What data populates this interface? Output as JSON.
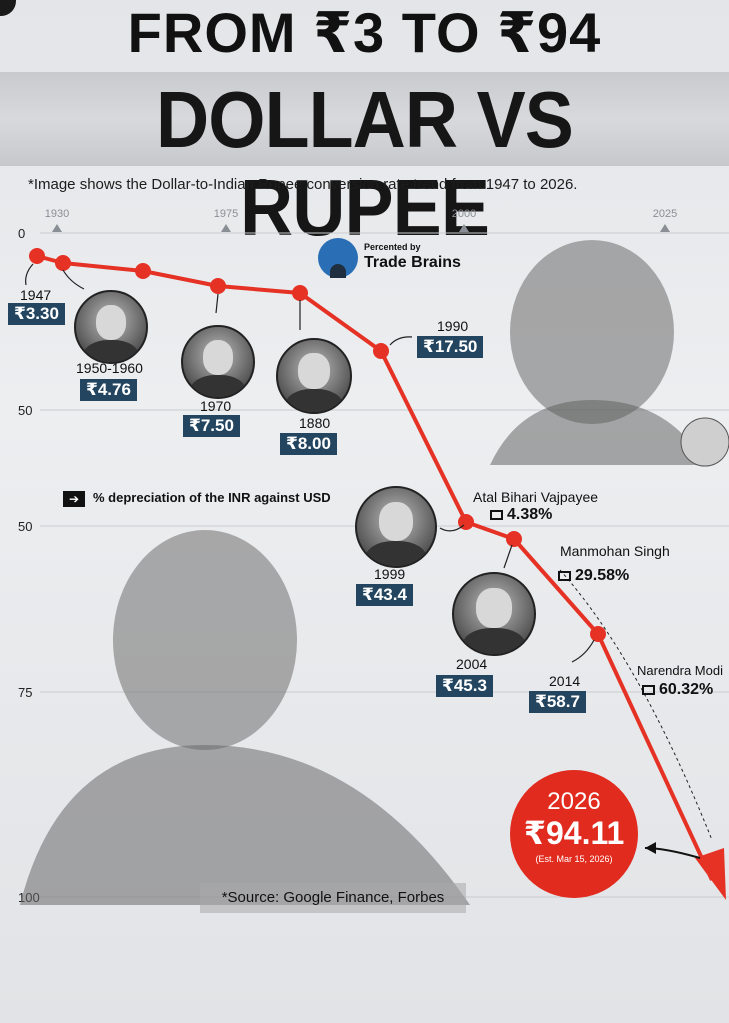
{
  "header": {
    "title_line1": "FROM ₹3 TO ₹94",
    "title_line2": "DOLLAR VS RUPEE",
    "note": "*Image shows the Dollar-to-Indian Rupee conversion rate trend from 1947 to 2026."
  },
  "brand": {
    "presented_by": "Percented by",
    "name": "Trade Brains"
  },
  "legend": {
    "text": "% depreciation of the INR against USD"
  },
  "source": "*Source: Google Finance, Forbes",
  "chart_data": {
    "type": "line",
    "x_axis_ticks": [
      "1930",
      "1975",
      "2000",
      "2025"
    ],
    "y_axis_ticks": [
      "0",
      "50",
      "50",
      "75",
      "100"
    ],
    "points": [
      {
        "year": "1947",
        "value": 3.3,
        "label": "₹3.30"
      },
      {
        "year": "1950-1960",
        "value": 4.76,
        "label": "₹4.76"
      },
      {
        "year": "1970",
        "value": 7.5,
        "label": "₹7.50"
      },
      {
        "year": "1880",
        "value": 8.0,
        "label": "₹8.00"
      },
      {
        "year": "1990",
        "value": 17.5,
        "label": "₹17.50"
      },
      {
        "year": "1999",
        "value": 43.4,
        "label": "₹43.4"
      },
      {
        "year": "2004",
        "value": 45.3,
        "label": "₹45.3"
      },
      {
        "year": "2014",
        "value": 58.7,
        "label": "₹58.7"
      },
      {
        "year": "2026",
        "value": 94.11,
        "label": "₹94.11",
        "note": "(Est. Mar 15, 2026)"
      }
    ],
    "annotations": [
      {
        "name": "Atal Bihari Vajpayee",
        "pct": "4.38%"
      },
      {
        "name": "Manmohan Singh",
        "pct": "29.58%"
      },
      {
        "name": "Narendra Modi",
        "pct": "60.32%"
      }
    ],
    "line_color": "#e53225",
    "label_color": "#23455f"
  }
}
